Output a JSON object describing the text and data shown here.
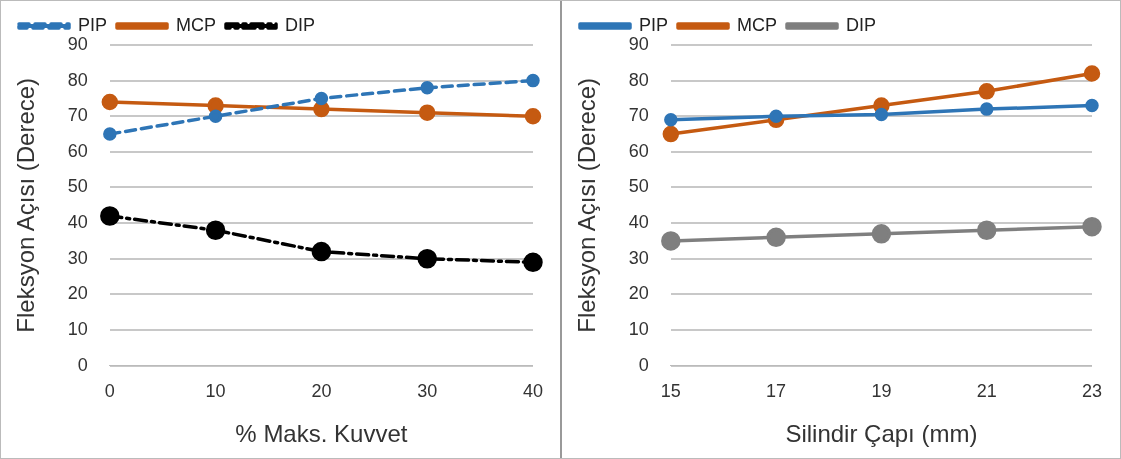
{
  "chart_data": [
    {
      "type": "line",
      "xlabel": "% Maks. Kuvvet",
      "ylabel": "Fleksyon Açısı (Derece)",
      "categories": [
        "0",
        "10",
        "20",
        "30",
        "40"
      ],
      "ylim": [
        0,
        90
      ],
      "yticks": [
        0,
        10,
        20,
        30,
        40,
        50,
        60,
        70,
        80,
        90
      ],
      "grid": "y",
      "legend": "top left",
      "marker": "circle",
      "series": [
        {
          "name": "PIP",
          "color": "#2e75b6",
          "line_style": "dashed",
          "values": [
            65,
            70,
            75,
            78,
            80
          ]
        },
        {
          "name": "MCP",
          "color": "#c55a11",
          "line_style": "solid",
          "values": [
            74,
            73,
            72,
            71,
            70
          ]
        },
        {
          "name": "DIP",
          "color": "#000000",
          "line_style": "dotted",
          "values": [
            42,
            38,
            32,
            30,
            29
          ]
        }
      ]
    },
    {
      "type": "line",
      "xlabel": "Silindir Çapı (mm)",
      "ylabel": "Fleksyon Açısı (Derece)",
      "categories": [
        "15",
        "17",
        "19",
        "21",
        "23"
      ],
      "ylim": [
        0,
        90
      ],
      "yticks": [
        0,
        10,
        20,
        30,
        40,
        50,
        60,
        70,
        80,
        90
      ],
      "grid": "y",
      "legend": "top left",
      "marker": "circle",
      "series": [
        {
          "name": "PIP",
          "color": "#2e75b6",
          "line_style": "solid",
          "values": [
            69,
            70,
            70.5,
            72,
            73
          ]
        },
        {
          "name": "MCP",
          "color": "#c55a11",
          "line_style": "solid",
          "values": [
            65,
            69,
            73,
            77,
            82
          ]
        },
        {
          "name": "DIP",
          "color": "#7f7f7f",
          "line_style": "solid",
          "values": [
            35,
            36,
            37,
            38,
            39
          ]
        }
      ]
    }
  ]
}
